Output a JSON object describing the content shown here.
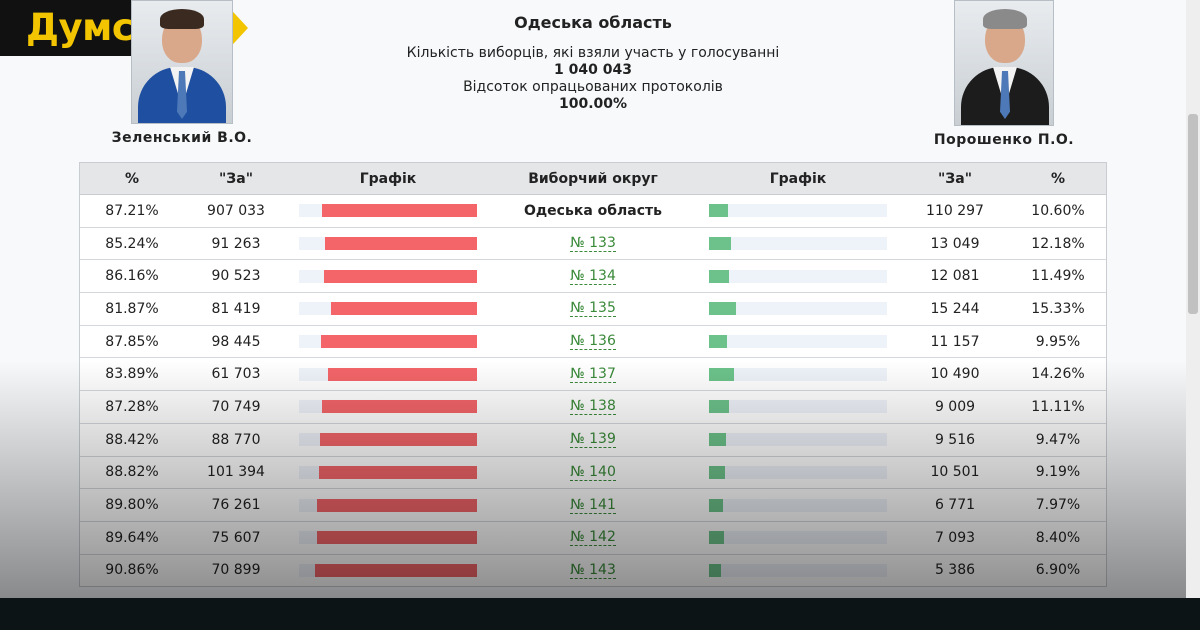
{
  "brand": {
    "logo_text": "Думська",
    "accent": "#f2c500",
    "logo_bg": "#111111"
  },
  "candidates": {
    "left": {
      "name": "Зеленський В.О."
    },
    "right": {
      "name": "Порошенко П.О."
    }
  },
  "header": {
    "region": "Одеська область",
    "voters_label": "Кількість виборців, які взяли участь у голосуванні",
    "voters_value": "1 040 043",
    "processed_label": "Відсоток опрацьованих протоколів",
    "processed_value": "100.00%"
  },
  "table": {
    "columns": [
      "%",
      "\"За\"",
      "Графік",
      "Виборчий округ",
      "Графік",
      "\"За\"",
      "%"
    ],
    "rows": [
      {
        "zel_pct": "87.21%",
        "zel_votes": "907 033",
        "district": "Одеська область",
        "is_link": false,
        "por_votes": "110 297",
        "por_pct": "10.60%"
      },
      {
        "zel_pct": "85.24%",
        "zel_votes": "91 263",
        "district": "№ 133",
        "is_link": true,
        "por_votes": "13 049",
        "por_pct": "12.18%"
      },
      {
        "zel_pct": "86.16%",
        "zel_votes": "90 523",
        "district": "№ 134",
        "is_link": true,
        "por_votes": "12 081",
        "por_pct": "11.49%"
      },
      {
        "zel_pct": "81.87%",
        "zel_votes": "81 419",
        "district": "№ 135",
        "is_link": true,
        "por_votes": "15 244",
        "por_pct": "15.33%"
      },
      {
        "zel_pct": "87.85%",
        "zel_votes": "98 445",
        "district": "№ 136",
        "is_link": true,
        "por_votes": "11 157",
        "por_pct": "9.95%"
      },
      {
        "zel_pct": "83.89%",
        "zel_votes": "61 703",
        "district": "№ 137",
        "is_link": true,
        "por_votes": "10 490",
        "por_pct": "14.26%"
      },
      {
        "zel_pct": "87.28%",
        "zel_votes": "70 749",
        "district": "№ 138",
        "is_link": true,
        "por_votes": "9 009",
        "por_pct": "11.11%"
      },
      {
        "zel_pct": "88.42%",
        "zel_votes": "88 770",
        "district": "№ 139",
        "is_link": true,
        "por_votes": "9 516",
        "por_pct": "9.47%"
      },
      {
        "zel_pct": "88.82%",
        "zel_votes": "101 394",
        "district": "№ 140",
        "is_link": true,
        "por_votes": "10 501",
        "por_pct": "9.19%"
      },
      {
        "zel_pct": "89.80%",
        "zel_votes": "76 261",
        "district": "№ 141",
        "is_link": true,
        "por_votes": "6 771",
        "por_pct": "7.97%"
      },
      {
        "zel_pct": "89.64%",
        "zel_votes": "75 607",
        "district": "№ 142",
        "is_link": true,
        "por_votes": "7 093",
        "por_pct": "8.40%"
      },
      {
        "zel_pct": "90.86%",
        "zel_votes": "70 899",
        "district": "№ 143",
        "is_link": true,
        "por_votes": "5 386",
        "por_pct": "6.90%"
      }
    ]
  },
  "colors": {
    "zel_bar": "#f36569",
    "por_bar": "#6cc28a",
    "bar_track": "#eef2f9",
    "link": "#3a8a3a"
  }
}
